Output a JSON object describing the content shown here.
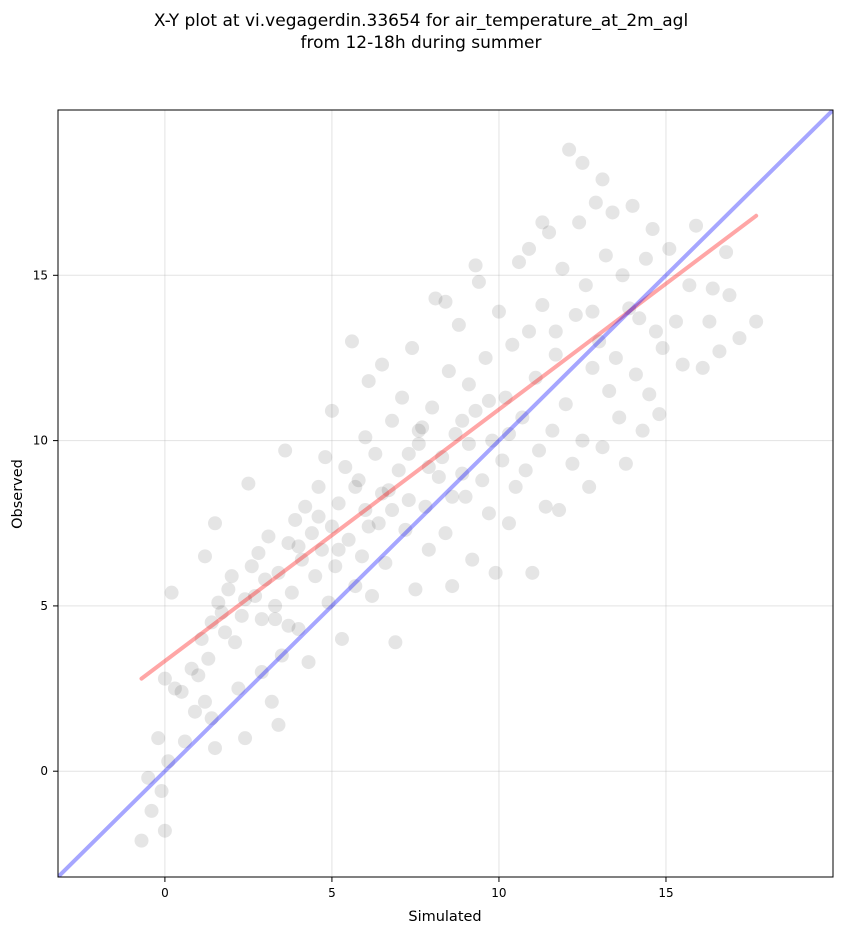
{
  "chart_data": {
    "type": "scatter",
    "title_lines": [
      "X-Y plot at vi.vegagerdin.33654 for air_temperature_at_2m_agl",
      "from 12-18h during summer"
    ],
    "xlabel": "Simulated",
    "ylabel": "Observed",
    "xlim": [
      -3.2,
      20.0
    ],
    "ylim": [
      -3.2,
      20.0
    ],
    "xticks": [
      0,
      5,
      10,
      15
    ],
    "yticks": [
      0,
      5,
      10,
      15
    ],
    "grid": true,
    "point_color": "#000000",
    "point_alpha": 0.1,
    "points": [
      [
        -0.7,
        -2.1
      ],
      [
        -0.5,
        -0.2
      ],
      [
        -0.4,
        -1.2
      ],
      [
        -0.2,
        1.0
      ],
      [
        -0.1,
        -0.6
      ],
      [
        0.0,
        -1.8
      ],
      [
        0.1,
        0.3
      ],
      [
        0.0,
        2.8
      ],
      [
        0.3,
        2.5
      ],
      [
        0.2,
        5.4
      ],
      [
        0.5,
        2.4
      ],
      [
        0.6,
        0.9
      ],
      [
        0.8,
        3.1
      ],
      [
        0.9,
        1.8
      ],
      [
        1.0,
        2.9
      ],
      [
        1.1,
        4.0
      ],
      [
        1.2,
        6.5
      ],
      [
        1.2,
        2.1
      ],
      [
        1.3,
        3.4
      ],
      [
        1.4,
        1.6
      ],
      [
        1.5,
        7.5
      ],
      [
        1.5,
        0.7
      ],
      [
        1.4,
        4.5
      ],
      [
        1.6,
        5.1
      ],
      [
        1.7,
        4.8
      ],
      [
        1.8,
        4.2
      ],
      [
        1.9,
        5.5
      ],
      [
        2.0,
        5.9
      ],
      [
        2.1,
        3.9
      ],
      [
        2.2,
        2.5
      ],
      [
        2.3,
        4.7
      ],
      [
        2.4,
        5.2
      ],
      [
        2.4,
        1.0
      ],
      [
        2.5,
        8.7
      ],
      [
        2.6,
        6.2
      ],
      [
        2.7,
        5.3
      ],
      [
        2.8,
        6.6
      ],
      [
        2.9,
        4.6
      ],
      [
        3.0,
        5.8
      ],
      [
        3.1,
        7.1
      ],
      [
        3.2,
        2.1
      ],
      [
        3.3,
        5.0
      ],
      [
        3.4,
        6.0
      ],
      [
        3.4,
        1.4
      ],
      [
        3.5,
        3.5
      ],
      [
        3.6,
        9.7
      ],
      [
        3.7,
        6.9
      ],
      [
        3.8,
        5.4
      ],
      [
        3.9,
        7.6
      ],
      [
        4.0,
        4.3
      ],
      [
        4.1,
        6.4
      ],
      [
        4.2,
        8.0
      ],
      [
        4.3,
        3.3
      ],
      [
        4.4,
        7.2
      ],
      [
        4.5,
        5.9
      ],
      [
        4.6,
        8.6
      ],
      [
        4.7,
        6.7
      ],
      [
        4.8,
        9.5
      ],
      [
        4.9,
        5.1
      ],
      [
        5.0,
        7.4
      ],
      [
        5.0,
        10.9
      ],
      [
        5.1,
        6.2
      ],
      [
        5.2,
        8.1
      ],
      [
        5.3,
        4.0
      ],
      [
        5.4,
        9.2
      ],
      [
        5.5,
        7.0
      ],
      [
        5.6,
        13.0
      ],
      [
        5.7,
        5.6
      ],
      [
        5.8,
        8.8
      ],
      [
        5.9,
        6.5
      ],
      [
        6.0,
        10.1
      ],
      [
        6.0,
        7.9
      ],
      [
        6.1,
        11.8
      ],
      [
        6.2,
        5.3
      ],
      [
        6.3,
        9.6
      ],
      [
        6.4,
        7.5
      ],
      [
        6.5,
        12.3
      ],
      [
        6.6,
        6.3
      ],
      [
        6.7,
        8.5
      ],
      [
        6.8,
        10.6
      ],
      [
        6.9,
        3.9
      ],
      [
        7.0,
        9.1
      ],
      [
        7.1,
        11.3
      ],
      [
        7.2,
        7.3
      ],
      [
        7.3,
        8.2
      ],
      [
        7.4,
        12.8
      ],
      [
        7.5,
        5.5
      ],
      [
        7.6,
        9.9
      ],
      [
        7.7,
        10.4
      ],
      [
        7.8,
        8.0
      ],
      [
        7.9,
        6.7
      ],
      [
        8.0,
        11.0
      ],
      [
        8.1,
        14.3
      ],
      [
        8.2,
        8.9
      ],
      [
        8.3,
        9.5
      ],
      [
        8.4,
        7.2
      ],
      [
        8.5,
        12.1
      ],
      [
        8.6,
        5.6
      ],
      [
        8.7,
        10.2
      ],
      [
        8.8,
        13.5
      ],
      [
        8.9,
        9.0
      ],
      [
        9.0,
        8.3
      ],
      [
        9.1,
        11.7
      ],
      [
        9.2,
        6.4
      ],
      [
        9.3,
        10.9
      ],
      [
        9.4,
        14.8
      ],
      [
        9.5,
        8.8
      ],
      [
        9.6,
        12.5
      ],
      [
        9.7,
        7.8
      ],
      [
        9.8,
        10.0
      ],
      [
        9.9,
        6.0
      ],
      [
        10.0,
        13.9
      ],
      [
        10.1,
        9.4
      ],
      [
        10.2,
        11.3
      ],
      [
        10.3,
        7.5
      ],
      [
        10.4,
        12.9
      ],
      [
        10.5,
        8.6
      ],
      [
        10.6,
        15.4
      ],
      [
        10.7,
        10.7
      ],
      [
        10.8,
        9.1
      ],
      [
        10.9,
        13.3
      ],
      [
        11.0,
        6.0
      ],
      [
        11.1,
        11.9
      ],
      [
        11.2,
        9.7
      ],
      [
        11.3,
        14.1
      ],
      [
        11.4,
        8.0
      ],
      [
        11.5,
        16.3
      ],
      [
        11.6,
        10.3
      ],
      [
        11.7,
        12.6
      ],
      [
        11.8,
        7.9
      ],
      [
        11.9,
        15.2
      ],
      [
        12.0,
        11.1
      ],
      [
        12.1,
        18.8
      ],
      [
        12.2,
        9.3
      ],
      [
        12.3,
        13.8
      ],
      [
        12.4,
        16.6
      ],
      [
        12.5,
        10.0
      ],
      [
        12.6,
        14.7
      ],
      [
        12.7,
        8.6
      ],
      [
        12.8,
        12.2
      ],
      [
        12.9,
        17.2
      ],
      [
        13.0,
        13.0
      ],
      [
        13.1,
        9.8
      ],
      [
        13.2,
        15.6
      ],
      [
        13.3,
        11.5
      ],
      [
        13.4,
        16.9
      ],
      [
        13.5,
        12.5
      ],
      [
        13.6,
        10.7
      ],
      [
        13.7,
        15.0
      ],
      [
        13.8,
        9.3
      ],
      [
        13.9,
        14.0
      ],
      [
        14.0,
        17.1
      ],
      [
        14.1,
        12.0
      ],
      [
        14.2,
        13.7
      ],
      [
        14.3,
        10.3
      ],
      [
        14.4,
        15.5
      ],
      [
        14.5,
        11.4
      ],
      [
        14.6,
        16.4
      ],
      [
        14.7,
        13.3
      ],
      [
        14.9,
        12.8
      ],
      [
        15.1,
        15.8
      ],
      [
        15.3,
        13.6
      ],
      [
        15.5,
        12.3
      ],
      [
        15.7,
        14.7
      ],
      [
        15.9,
        16.5
      ],
      [
        16.1,
        12.2
      ],
      [
        16.3,
        13.6
      ],
      [
        16.6,
        12.7
      ],
      [
        16.9,
        14.4
      ],
      [
        17.2,
        13.1
      ],
      [
        17.7,
        13.6
      ],
      [
        16.8,
        15.7
      ],
      [
        16.4,
        14.6
      ],
      [
        12.5,
        18.4
      ],
      [
        13.1,
        17.9
      ],
      [
        11.3,
        16.6
      ],
      [
        9.3,
        15.3
      ],
      [
        8.4,
        14.2
      ],
      [
        10.9,
        15.8
      ],
      [
        14.8,
        10.8
      ],
      [
        4.6,
        7.7
      ],
      [
        5.2,
        6.7
      ],
      [
        6.5,
        8.4
      ],
      [
        7.3,
        9.6
      ],
      [
        8.6,
        8.3
      ],
      [
        7.9,
        9.2
      ],
      [
        6.1,
        7.4
      ],
      [
        8.9,
        10.6
      ],
      [
        9.7,
        11.2
      ],
      [
        5.7,
        8.6
      ],
      [
        3.7,
        4.4
      ],
      [
        2.9,
        3.0
      ],
      [
        4.0,
        6.8
      ],
      [
        6.8,
        7.9
      ],
      [
        7.6,
        10.3
      ],
      [
        9.1,
        9.9
      ],
      [
        10.3,
        10.2
      ],
      [
        11.7,
        13.3
      ],
      [
        12.8,
        13.9
      ],
      [
        3.3,
        4.6
      ]
    ],
    "series": [
      {
        "kind": "regression",
        "color": "#ff0000",
        "alpha": 0.35,
        "x": [
          -0.7,
          17.7
        ],
        "y": [
          2.8,
          16.8
        ]
      },
      {
        "kind": "identity",
        "color": "#0000ff",
        "alpha": 0.35,
        "x": [
          -3.2,
          20.0
        ],
        "y": [
          -3.2,
          20.0
        ]
      }
    ]
  }
}
